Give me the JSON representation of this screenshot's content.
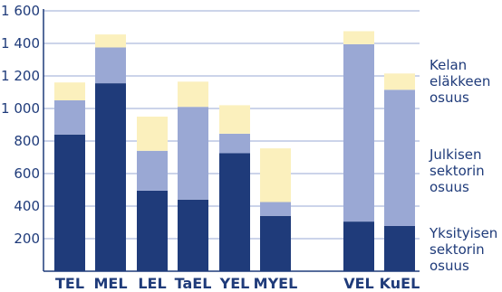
{
  "chart_data": {
    "type": "bar",
    "stacked": true,
    "categories": [
      "TEL",
      "MEL",
      "LEL",
      "TaEL",
      "YEL",
      "MYEL",
      "VEL",
      "KuEL"
    ],
    "series": [
      {
        "name": "Yksityisen sektorin osuus",
        "color": "#1f3b7a",
        "values": [
          840,
          1155,
          495,
          440,
          725,
          340,
          305,
          278
        ]
      },
      {
        "name": "Julkisen sektorin osuus",
        "color": "#9aa8d4",
        "values": [
          210,
          220,
          245,
          570,
          120,
          85,
          1090,
          837
        ]
      },
      {
        "name": "Kelan eläkkeen osuus",
        "color": "#fbf0bd",
        "values": [
          110,
          80,
          210,
          155,
          175,
          330,
          80,
          100
        ]
      }
    ],
    "ylim": [
      0,
      1600
    ],
    "yticks": [
      {
        "value": 200,
        "label": "200"
      },
      {
        "value": 400,
        "label": "400"
      },
      {
        "value": 600,
        "label": "600"
      },
      {
        "value": 800,
        "label": "800"
      },
      {
        "value": 1000,
        "label": "1 000"
      },
      {
        "value": 1200,
        "label": "1 200"
      },
      {
        "value": 1400,
        "label": "1 400"
      },
      {
        "value": 1600,
        "label": "1 600"
      }
    ],
    "grid": true,
    "legend": {
      "placement": "right",
      "entries": [
        {
          "lines": [
            "Kelan",
            "eläkkeen",
            "osuus"
          ]
        },
        {
          "lines": [
            "Julkisen",
            "sektorin",
            "osuus"
          ]
        },
        {
          "lines": [
            "Yksityisen",
            "sektorin",
            "osuus"
          ]
        }
      ]
    },
    "colors": {
      "axis": "#1f3b7a",
      "grid": "#9aa8d4",
      "text": "#1f3b7a"
    }
  }
}
